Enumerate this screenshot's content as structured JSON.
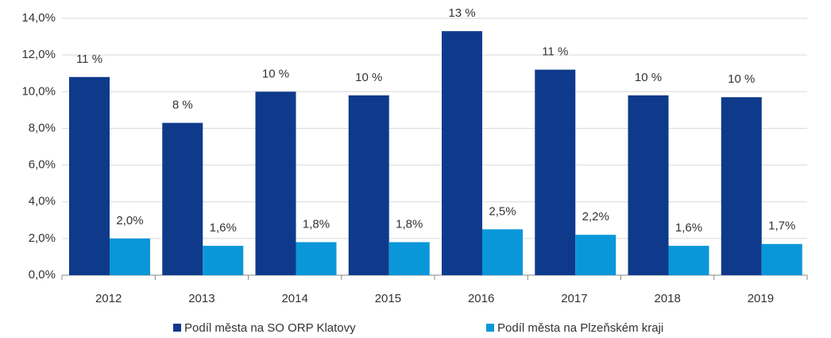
{
  "chart_data": {
    "type": "bar",
    "categories": [
      "2012",
      "2013",
      "2014",
      "2015",
      "2016",
      "2017",
      "2018",
      "2019"
    ],
    "series": [
      {
        "name": "Podíl města na SO ORP Klatovy",
        "color": "#0f3a8c",
        "values": [
          10.8,
          8.3,
          10.0,
          9.8,
          13.3,
          11.2,
          9.8,
          9.7
        ],
        "value_labels": [
          "11 %",
          "8 %",
          "10 %",
          "10 %",
          "13 %",
          "11 %",
          "10 %",
          "10 %"
        ]
      },
      {
        "name": "Podíl města na Plzeňském kraji",
        "color": "#0a97d9",
        "values": [
          2.0,
          1.6,
          1.8,
          1.8,
          2.5,
          2.2,
          1.6,
          1.7
        ],
        "value_labels": [
          "2,0%",
          "1,6%",
          "1,8%",
          "1,8%",
          "2,5%",
          "2,2%",
          "1,6%",
          "1,7%"
        ]
      }
    ],
    "ylim": [
      0,
      14
    ],
    "yticks": [
      {
        "value": 0,
        "label": "0,0%"
      },
      {
        "value": 2,
        "label": "2,0%"
      },
      {
        "value": 4,
        "label": "4,0%"
      },
      {
        "value": 6,
        "label": "6,0%"
      },
      {
        "value": 8,
        "label": "8,0%"
      },
      {
        "value": 10,
        "label": "10,0%"
      },
      {
        "value": 12,
        "label": "12,0%"
      },
      {
        "value": 14,
        "label": "14,0%"
      }
    ],
    "grid": true,
    "legend": "bottom"
  }
}
